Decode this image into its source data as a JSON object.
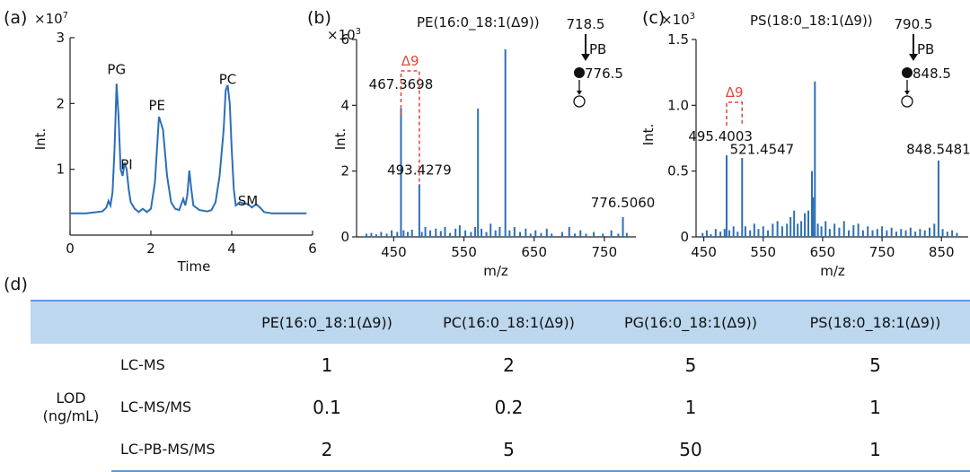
{
  "panels": {
    "a": {
      "label": "(a)"
    },
    "b": {
      "label": "(b)"
    },
    "c": {
      "label": "(c)"
    },
    "d": {
      "label": "(d)"
    }
  },
  "colors": {
    "line": "#2c6fb7",
    "red": "#e0463a",
    "table_header": "#bcd7ee",
    "table_rule": "#5b9bd5"
  },
  "chart_data": [
    {
      "type": "line",
      "panel": "a",
      "xlabel": "Time",
      "ylabel": "Int.",
      "y_multiplier": "×10",
      "y_multiplier_exp": "7",
      "xlim": [
        0,
        6
      ],
      "ylim": [
        0,
        3
      ],
      "xticks": [
        "0",
        "2",
        "4",
        "6"
      ],
      "yticks": [
        "1",
        "2",
        "3"
      ],
      "peak_labels": [
        {
          "text": "PG",
          "x": 1.15,
          "y": 2.45
        },
        {
          "text": "PI",
          "x": 1.4,
          "y": 1.0
        },
        {
          "text": "PE",
          "x": 2.15,
          "y": 1.9
        },
        {
          "text": "PC",
          "x": 3.9,
          "y": 2.3
        },
        {
          "text": "SM",
          "x": 4.4,
          "y": 0.45
        }
      ],
      "trace": [
        [
          0,
          0.33
        ],
        [
          0.4,
          0.33
        ],
        [
          0.8,
          0.36
        ],
        [
          0.9,
          0.42
        ],
        [
          0.95,
          0.52
        ],
        [
          1.0,
          0.45
        ],
        [
          1.05,
          0.65
        ],
        [
          1.1,
          1.3
        ],
        [
          1.15,
          2.3
        ],
        [
          1.2,
          1.8
        ],
        [
          1.25,
          1.0
        ],
        [
          1.3,
          0.9
        ],
        [
          1.35,
          1.1
        ],
        [
          1.4,
          1.0
        ],
        [
          1.45,
          0.7
        ],
        [
          1.5,
          0.5
        ],
        [
          1.6,
          0.4
        ],
        [
          1.7,
          0.35
        ],
        [
          1.8,
          0.4
        ],
        [
          1.9,
          0.35
        ],
        [
          2.0,
          0.4
        ],
        [
          2.1,
          0.8
        ],
        [
          2.2,
          1.8
        ],
        [
          2.3,
          1.6
        ],
        [
          2.4,
          0.9
        ],
        [
          2.5,
          0.5
        ],
        [
          2.6,
          0.4
        ],
        [
          2.7,
          0.38
        ],
        [
          2.8,
          0.55
        ],
        [
          2.85,
          0.45
        ],
        [
          2.9,
          0.6
        ],
        [
          2.95,
          0.98
        ],
        [
          3.0,
          0.7
        ],
        [
          3.05,
          0.45
        ],
        [
          3.2,
          0.38
        ],
        [
          3.4,
          0.36
        ],
        [
          3.5,
          0.38
        ],
        [
          3.6,
          0.5
        ],
        [
          3.7,
          0.9
        ],
        [
          3.8,
          1.6
        ],
        [
          3.85,
          2.2
        ],
        [
          3.9,
          2.28
        ],
        [
          3.95,
          2.0
        ],
        [
          4.0,
          1.3
        ],
        [
          4.05,
          0.7
        ],
        [
          4.1,
          0.45
        ],
        [
          4.2,
          0.5
        ],
        [
          4.3,
          0.48
        ],
        [
          4.4,
          0.47
        ],
        [
          4.5,
          0.42
        ],
        [
          4.6,
          0.47
        ],
        [
          4.7,
          0.42
        ],
        [
          4.8,
          0.35
        ],
        [
          5.0,
          0.33
        ],
        [
          5.5,
          0.33
        ],
        [
          5.85,
          0.33
        ]
      ]
    },
    {
      "type": "bar",
      "panel": "b",
      "title": "PE(16:0_18:1(Δ9))",
      "xlabel": "m/z",
      "ylabel": "Int.",
      "y_multiplier": "×10",
      "y_multiplier_exp": "3",
      "xlim": [
        397,
        795
      ],
      "ylim": [
        0,
        6
      ],
      "xticks": [
        "450",
        "550",
        "650",
        "750"
      ],
      "yticks": [
        "0",
        "2",
        "4",
        "6"
      ],
      "peaks": [
        [
          411,
          0.1
        ],
        [
          418,
          0.12
        ],
        [
          425,
          0.08
        ],
        [
          432,
          0.15
        ],
        [
          440,
          0.1
        ],
        [
          447,
          0.2
        ],
        [
          455,
          0.15
        ],
        [
          460.3,
          3.9
        ],
        [
          464,
          0.2
        ],
        [
          470,
          0.15
        ],
        [
          476,
          0.22
        ],
        [
          486.4,
          1.6
        ],
        [
          490,
          0.15
        ],
        [
          495,
          0.3
        ],
        [
          502,
          0.2
        ],
        [
          510,
          0.25
        ],
        [
          517,
          0.18
        ],
        [
          523,
          0.3
        ],
        [
          530,
          0.12
        ],
        [
          538,
          0.25
        ],
        [
          544,
          0.35
        ],
        [
          552,
          0.2
        ],
        [
          560,
          0.15
        ],
        [
          566,
          0.3
        ],
        [
          570,
          3.9
        ],
        [
          575,
          0.25
        ],
        [
          582,
          0.15
        ],
        [
          588,
          0.4
        ],
        [
          595,
          0.2
        ],
        [
          601,
          0.3
        ],
        [
          609,
          5.7
        ],
        [
          615,
          0.2
        ],
        [
          622,
          0.3
        ],
        [
          630,
          0.15
        ],
        [
          638,
          0.25
        ],
        [
          645,
          0.1
        ],
        [
          652,
          0.2
        ],
        [
          660,
          0.12
        ],
        [
          668,
          0.25
        ],
        [
          675,
          0.1
        ],
        [
          690,
          0.15
        ],
        [
          700,
          0.3
        ],
        [
          708,
          0.1
        ],
        [
          716,
          0.2
        ],
        [
          724,
          0.1
        ],
        [
          735,
          0.15
        ],
        [
          748,
          0.1
        ],
        [
          760,
          0.2
        ],
        [
          770,
          0.1
        ],
        [
          776.5,
          0.6
        ],
        [
          782,
          0.12
        ]
      ],
      "annotations": [
        {
          "text": "467.3698",
          "x": 460.3,
          "y": 4.5
        },
        {
          "text": "493.4279",
          "x": 486.4,
          "y": 1.9
        },
        {
          "text": "776.5060",
          "x": 776.5,
          "y": 0.9
        }
      ],
      "delta_label": "Δ9",
      "scheme": {
        "parent": "718.5",
        "reaction": "PB",
        "product": "776.5"
      }
    },
    {
      "type": "bar",
      "panel": "c",
      "title": "PS(18:0_18:1(Δ9))",
      "xlabel": "m/z",
      "ylabel": "Int.",
      "y_multiplier": "×10",
      "y_multiplier_exp": "3",
      "xlim": [
        437,
        895
      ],
      "ylim": [
        0,
        1.5
      ],
      "xticks": [
        "450",
        "550",
        "650",
        "750",
        "850"
      ],
      "yticks": [
        "0",
        "0.5",
        "1.0",
        "1.5"
      ],
      "peaks": [
        [
          448,
          0.03
        ],
        [
          455,
          0.05
        ],
        [
          462,
          0.02
        ],
        [
          470,
          0.06
        ],
        [
          478,
          0.04
        ],
        [
          485,
          0.06
        ],
        [
          488.4,
          0.62
        ],
        [
          493,
          0.05
        ],
        [
          500,
          0.08
        ],
        [
          507,
          0.04
        ],
        [
          514.5,
          0.6
        ],
        [
          520,
          0.08
        ],
        [
          528,
          0.05
        ],
        [
          535,
          0.1
        ],
        [
          542,
          0.06
        ],
        [
          550,
          0.08
        ],
        [
          558,
          0.05
        ],
        [
          566,
          0.1
        ],
        [
          574,
          0.12
        ],
        [
          582,
          0.08
        ],
        [
          590,
          0.1
        ],
        [
          596,
          0.15
        ],
        [
          602,
          0.2
        ],
        [
          608,
          0.1
        ],
        [
          614,
          0.12
        ],
        [
          620,
          0.18
        ],
        [
          626,
          0.2
        ],
        [
          632,
          0.5
        ],
        [
          634,
          0.3
        ],
        [
          637,
          1.18
        ],
        [
          642,
          0.1
        ],
        [
          648,
          0.08
        ],
        [
          655,
          0.12
        ],
        [
          662,
          0.06
        ],
        [
          670,
          0.1
        ],
        [
          678,
          0.07
        ],
        [
          686,
          0.12
        ],
        [
          694,
          0.05
        ],
        [
          702,
          0.09
        ],
        [
          710,
          0.1
        ],
        [
          718,
          0.05
        ],
        [
          726,
          0.08
        ],
        [
          734,
          0.05
        ],
        [
          742,
          0.06
        ],
        [
          750,
          0.08
        ],
        [
          758,
          0.05
        ],
        [
          766,
          0.07
        ],
        [
          774,
          0.04
        ],
        [
          782,
          0.06
        ],
        [
          790,
          0.05
        ],
        [
          798,
          0.07
        ],
        [
          806,
          0.04
        ],
        [
          814,
          0.06
        ],
        [
          822,
          0.05
        ],
        [
          830,
          0.07
        ],
        [
          838,
          0.1
        ],
        [
          845,
          0.58
        ],
        [
          852,
          0.06
        ],
        [
          860,
          0.04
        ],
        [
          868,
          0.05
        ],
        [
          876,
          0.03
        ]
      ],
      "annotations": [
        {
          "text": "495.4003",
          "x": 478,
          "y": 0.73
        },
        {
          "text": "521.4547",
          "x": 548,
          "y": 0.63
        },
        {
          "text": "848.5481",
          "x": 845,
          "y": 0.63
        }
      ],
      "delta_label": "Δ9",
      "scheme": {
        "parent": "790.5",
        "reaction": "PB",
        "product": "848.5"
      }
    }
  ],
  "table": {
    "columns": [
      "",
      "",
      "PE(16:0_18:1(Δ9))",
      "PC(16:0_18:1(Δ9))",
      "PG(16:0_18:1(Δ9))",
      "PS(18:0_18:1(Δ9))"
    ],
    "group_label_line1": "LOD",
    "group_label_line2": "(ng/mL)",
    "rows": [
      {
        "method": "LC-MS",
        "values": [
          "1",
          "2",
          "5",
          "5"
        ]
      },
      {
        "method": "LC-MS/MS",
        "values": [
          "0.1",
          "0.2",
          "1",
          "1"
        ]
      },
      {
        "method": "LC-PB-MS/MS",
        "values": [
          "2",
          "5",
          "50",
          "1"
        ]
      }
    ]
  }
}
